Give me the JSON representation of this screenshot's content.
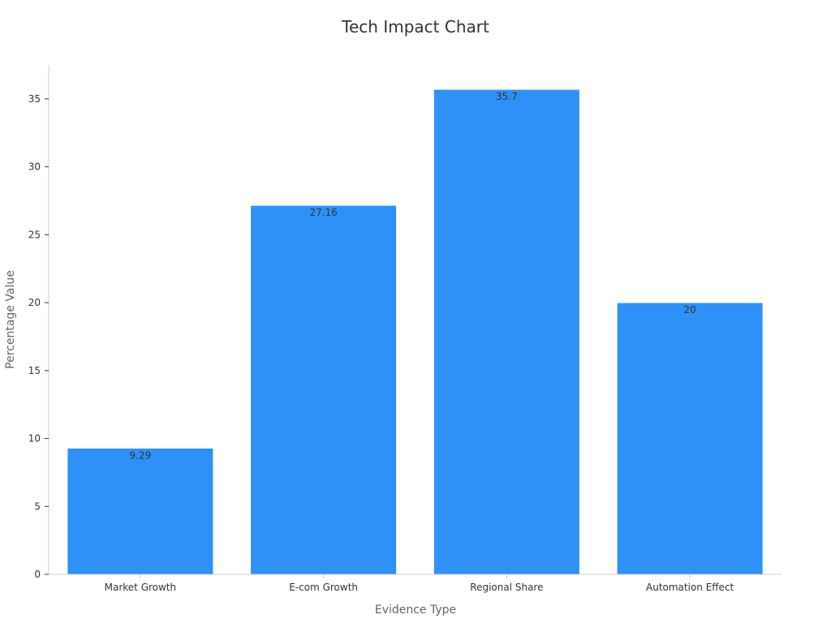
{
  "colors": {
    "bar": "#2e91f8",
    "axis": "#cccccc",
    "tick": "#333333",
    "title": "#333333",
    "axis_title": "#666666"
  },
  "chart_data": {
    "type": "bar",
    "title": "Tech Impact Chart",
    "xlabel": "Evidence Type",
    "ylabel": "Percentage Value",
    "categories": [
      "Market Growth",
      "E-com Growth",
      "Regional Share",
      "Automation Effect"
    ],
    "values": [
      9.29,
      27.16,
      35.7,
      20
    ],
    "value_labels": [
      "9.29",
      "27.16",
      "35.7",
      "20"
    ],
    "ylim": [
      0,
      37.5
    ],
    "yticks": [
      0,
      5,
      10,
      15,
      20,
      25,
      30,
      35
    ],
    "grid": false,
    "legend": "none"
  }
}
